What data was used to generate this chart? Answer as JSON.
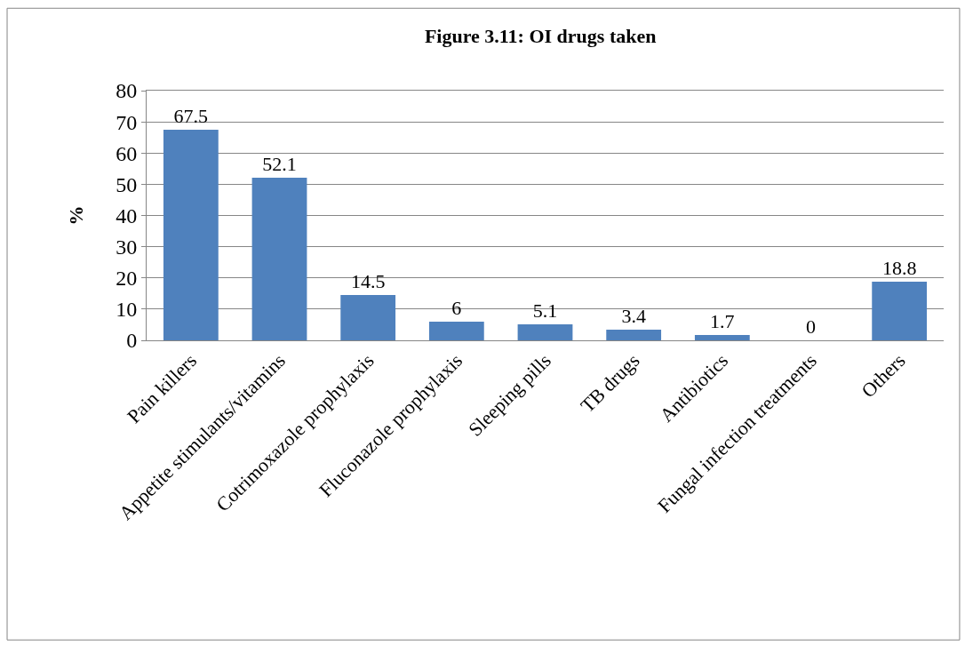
{
  "chart_data": {
    "type": "bar",
    "title": "Figure 3.11: OI drugs taken",
    "ylabel": "%",
    "categories": [
      "Pain killers",
      "Appetite stimulants/vitamins",
      "Cotrimoxazole prophylaxis",
      "Fluconazole prophylaxis",
      "Sleeping pills",
      "TB drugs",
      "Antibiotics",
      "Fungal infection treatments",
      "Others"
    ],
    "values": [
      67.5,
      52.1,
      14.5,
      6,
      5.1,
      3.4,
      1.7,
      0,
      18.8
    ],
    "color": "#4f81bd",
    "ylim": [
      0,
      80
    ],
    "yticks": [
      0,
      10,
      20,
      30,
      40,
      50,
      60,
      70,
      80
    ],
    "grid": "y",
    "data_labels": true
  }
}
